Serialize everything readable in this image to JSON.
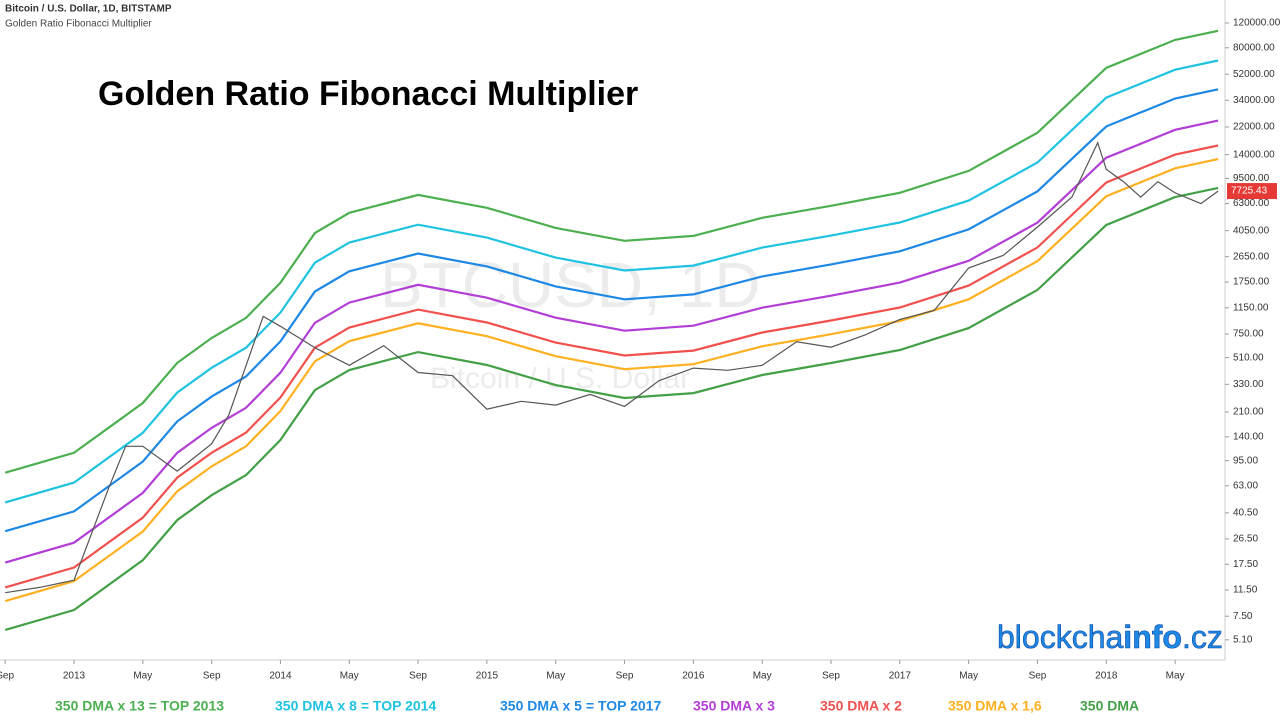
{
  "chart_data": {
    "type": "line",
    "title": "Golden Ratio Fibonacci Multiplier",
    "subtitle": "Bitcoin / U.S. Dollar, 1D, BITSTAMP",
    "annotations": [
      "Golden Ratio Fibonacci Multiplier",
      "BTCUSD, 1D",
      "Bitcoin / U.S. Dollar",
      "blockcha",
      "info",
      ".cz"
    ],
    "log_scale": true,
    "grid": false,
    "xlim": [
      -0.3,
      70.9
    ],
    "xticks": [
      {
        "value": 0,
        "label": "Sep"
      },
      {
        "value": 4,
        "label": "2013"
      },
      {
        "value": 8,
        "label": "May"
      },
      {
        "value": 12,
        "label": "Sep"
      },
      {
        "value": 16,
        "label": "2014"
      },
      {
        "value": 20,
        "label": "May"
      },
      {
        "value": 24,
        "label": "Sep"
      },
      {
        "value": 28,
        "label": "2015"
      },
      {
        "value": 32,
        "label": "May"
      },
      {
        "value": 36,
        "label": "Sep"
      },
      {
        "value": 40,
        "label": "2016"
      },
      {
        "value": 44,
        "label": "May"
      },
      {
        "value": 48,
        "label": "Sep"
      },
      {
        "value": 52,
        "label": "2017"
      },
      {
        "value": 56,
        "label": "May"
      },
      {
        "value": 60,
        "label": "Sep"
      },
      {
        "value": 64,
        "label": "2018"
      },
      {
        "value": 68,
        "label": "May"
      }
    ],
    "ylim": [
      3.67,
      174600
    ],
    "yticks": [
      {
        "value": 5.1,
        "label": "5.10"
      },
      {
        "value": 7.5,
        "label": "7.50"
      },
      {
        "value": 11.5,
        "label": "11.50"
      },
      {
        "value": 17.5,
        "label": "17.50"
      },
      {
        "value": 26.5,
        "label": "26.50"
      },
      {
        "value": 40.5,
        "label": "40.50"
      },
      {
        "value": 63,
        "label": "63.00"
      },
      {
        "value": 95,
        "label": "95.00"
      },
      {
        "value": 140,
        "label": "140.00"
      },
      {
        "value": 210,
        "label": "210.00"
      },
      {
        "value": 330,
        "label": "330.00"
      },
      {
        "value": 510,
        "label": "510.00"
      },
      {
        "value": 750,
        "label": "750.00"
      },
      {
        "value": 1150,
        "label": "1150.00"
      },
      {
        "value": 1750,
        "label": "1750.00"
      },
      {
        "value": 2650,
        "label": "2650.00"
      },
      {
        "value": 4050,
        "label": "4050.00"
      },
      {
        "value": 6300,
        "label": "6300.00"
      },
      {
        "value": 9500,
        "label": "9500.00"
      },
      {
        "value": 14000,
        "label": "14000.00"
      },
      {
        "value": 22000,
        "label": "22000.00"
      },
      {
        "value": 34000,
        "label": "34000.00"
      },
      {
        "value": 52000,
        "label": "52000.00"
      },
      {
        "value": 80000,
        "label": "80000.00"
      },
      {
        "value": 120000,
        "label": "120000.00"
      }
    ],
    "x": [
      0,
      4,
      8,
      10,
      12,
      14,
      16,
      18,
      20,
      24,
      28,
      32,
      36,
      40,
      44,
      48,
      52,
      56,
      60,
      64,
      68,
      70.5
    ],
    "series": [
      {
        "name": "350 DMA x 13 = TOP 2013",
        "color": "#4caf50",
        "values": [
          78,
          107.9,
          243.1,
          468,
          702,
          975,
          1729,
          3900,
          5421,
          7254,
          5876,
          4238,
          3432,
          3718,
          4992,
          6071,
          7514,
          10738,
          20020,
          57720,
          91000,
          105690
        ]
      },
      {
        "name": "350 DMA x 8 = TOP 2014",
        "color": "#1fc3e0",
        "values": [
          48,
          66.4,
          149.6,
          288,
          432,
          600,
          1064,
          2400,
          3336,
          4464,
          3616,
          2608,
          2112,
          2288,
          3072,
          3736,
          4624,
          6608,
          12320,
          35520,
          56000,
          65040
        ]
      },
      {
        "name": "350 DMA x 5 = TOP 2017",
        "color": "#1e88e5",
        "values": [
          30,
          41.5,
          93.5,
          180,
          270,
          375,
          665,
          1500,
          2085,
          2790,
          2260,
          1630,
          1320,
          1430,
          1920,
          2335,
          2890,
          4130,
          7700,
          22200,
          35000,
          40650
        ]
      },
      {
        "name": "350 DMA x 3",
        "color": "#b23ed6",
        "values": [
          18,
          24.9,
          56.1,
          108,
          162,
          225,
          399,
          900,
          1251,
          1674,
          1356,
          978,
          792,
          858,
          1152,
          1401,
          1734,
          2478,
          4620,
          13320,
          21000,
          24390
        ]
      },
      {
        "name": "350 DMA x 2",
        "color": "#f0514e",
        "values": [
          12,
          16.6,
          37.4,
          72,
          108,
          150,
          266,
          600,
          834,
          1116,
          904,
          652,
          528,
          572,
          768,
          934,
          1156,
          1652,
          3080,
          8880,
          14000,
          16260
        ]
      },
      {
        "name": "350 DMA x 1,6",
        "color": "#ffb020",
        "values": [
          9.6,
          13.3,
          29.9,
          57.6,
          86.4,
          120,
          213,
          480,
          667,
          893,
          723,
          522,
          422,
          458,
          614,
          747,
          925,
          1322,
          2464,
          7104,
          11200,
          13008
        ]
      },
      {
        "name": "350 DMA",
        "color": "#43a047",
        "values": [
          6.0,
          8.3,
          18.7,
          36,
          54,
          75,
          133,
          300,
          417,
          558,
          452,
          326,
          264,
          286,
          384,
          467,
          578,
          826,
          1540,
          4440,
          7000,
          8130
        ]
      }
    ],
    "price": {
      "color": "#555555",
      "label_color": "#e53935",
      "x": [
        0,
        2,
        4,
        6,
        7,
        8,
        10,
        12,
        13,
        15,
        16,
        18,
        20,
        22,
        24,
        26,
        28,
        30,
        32,
        34,
        36,
        38,
        40,
        42,
        44,
        46,
        48,
        50,
        52,
        54,
        56,
        58,
        60,
        62,
        63.5,
        64,
        65,
        66,
        67,
        68,
        69.5,
        70.5
      ],
      "values": [
        11,
        12,
        13.5,
        60,
        120,
        120,
        80,
        125,
        200,
        1000,
        850,
        600,
        450,
        620,
        400,
        380,
        220,
        250,
        235,
        280,
        230,
        350,
        430,
        415,
        450,
        660,
        605,
        740,
        950,
        1100,
        2200,
        2700,
        4300,
        7000,
        17000,
        11000,
        9000,
        7000,
        9000,
        7500,
        6300,
        7725.43
      ]
    }
  }
}
